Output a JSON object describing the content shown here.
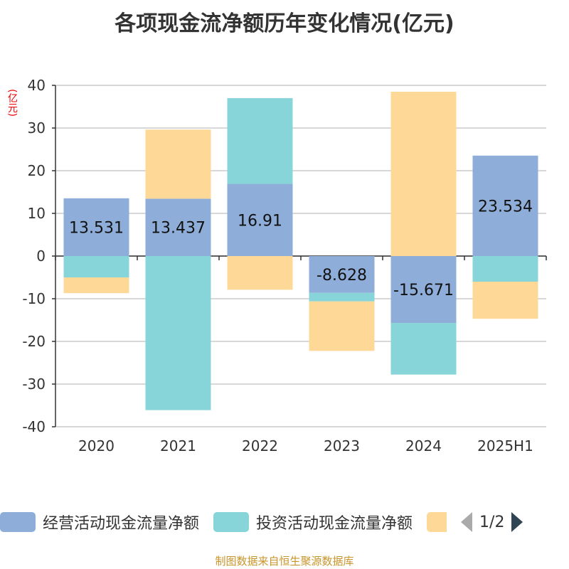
{
  "title": "各项现金流净额历年变化情况(亿元)",
  "unit_label": "(亿元)",
  "source": "制图数据来自恒生聚源数据库",
  "legend_pager": "1/2",
  "chart_data": {
    "type": "bar",
    "stacked": true,
    "title": "各项现金流净额历年变化情况(亿元)",
    "ylabel": "(亿元)",
    "ylim": [
      -40,
      40
    ],
    "yticks": [
      40,
      30,
      20,
      10,
      0,
      -10,
      -20,
      -30,
      -40
    ],
    "grid": true,
    "legend_position": "bottom",
    "categories": [
      "2020",
      "2021",
      "2022",
      "2023",
      "2024",
      "2025H1"
    ],
    "series": [
      {
        "name": "经营活动现金流量净额",
        "color": "#8eaed9",
        "values": [
          13.531,
          13.437,
          16.91,
          -8.628,
          -15.671,
          23.534
        ],
        "labels": [
          "13.531",
          "13.437",
          "16.91",
          "-8.628",
          "-15.671",
          "23.534"
        ]
      },
      {
        "name": "投资活动现金流量净额",
        "color": "#87d5d8",
        "values": [
          -5.0,
          -36.1,
          20.1,
          -2.0,
          -12.1,
          -6.0
        ]
      },
      {
        "name": "",
        "color": "#fed897",
        "values": [
          -3.7,
          16.2,
          -7.9,
          -11.6,
          38.5,
          -8.7
        ]
      }
    ]
  }
}
